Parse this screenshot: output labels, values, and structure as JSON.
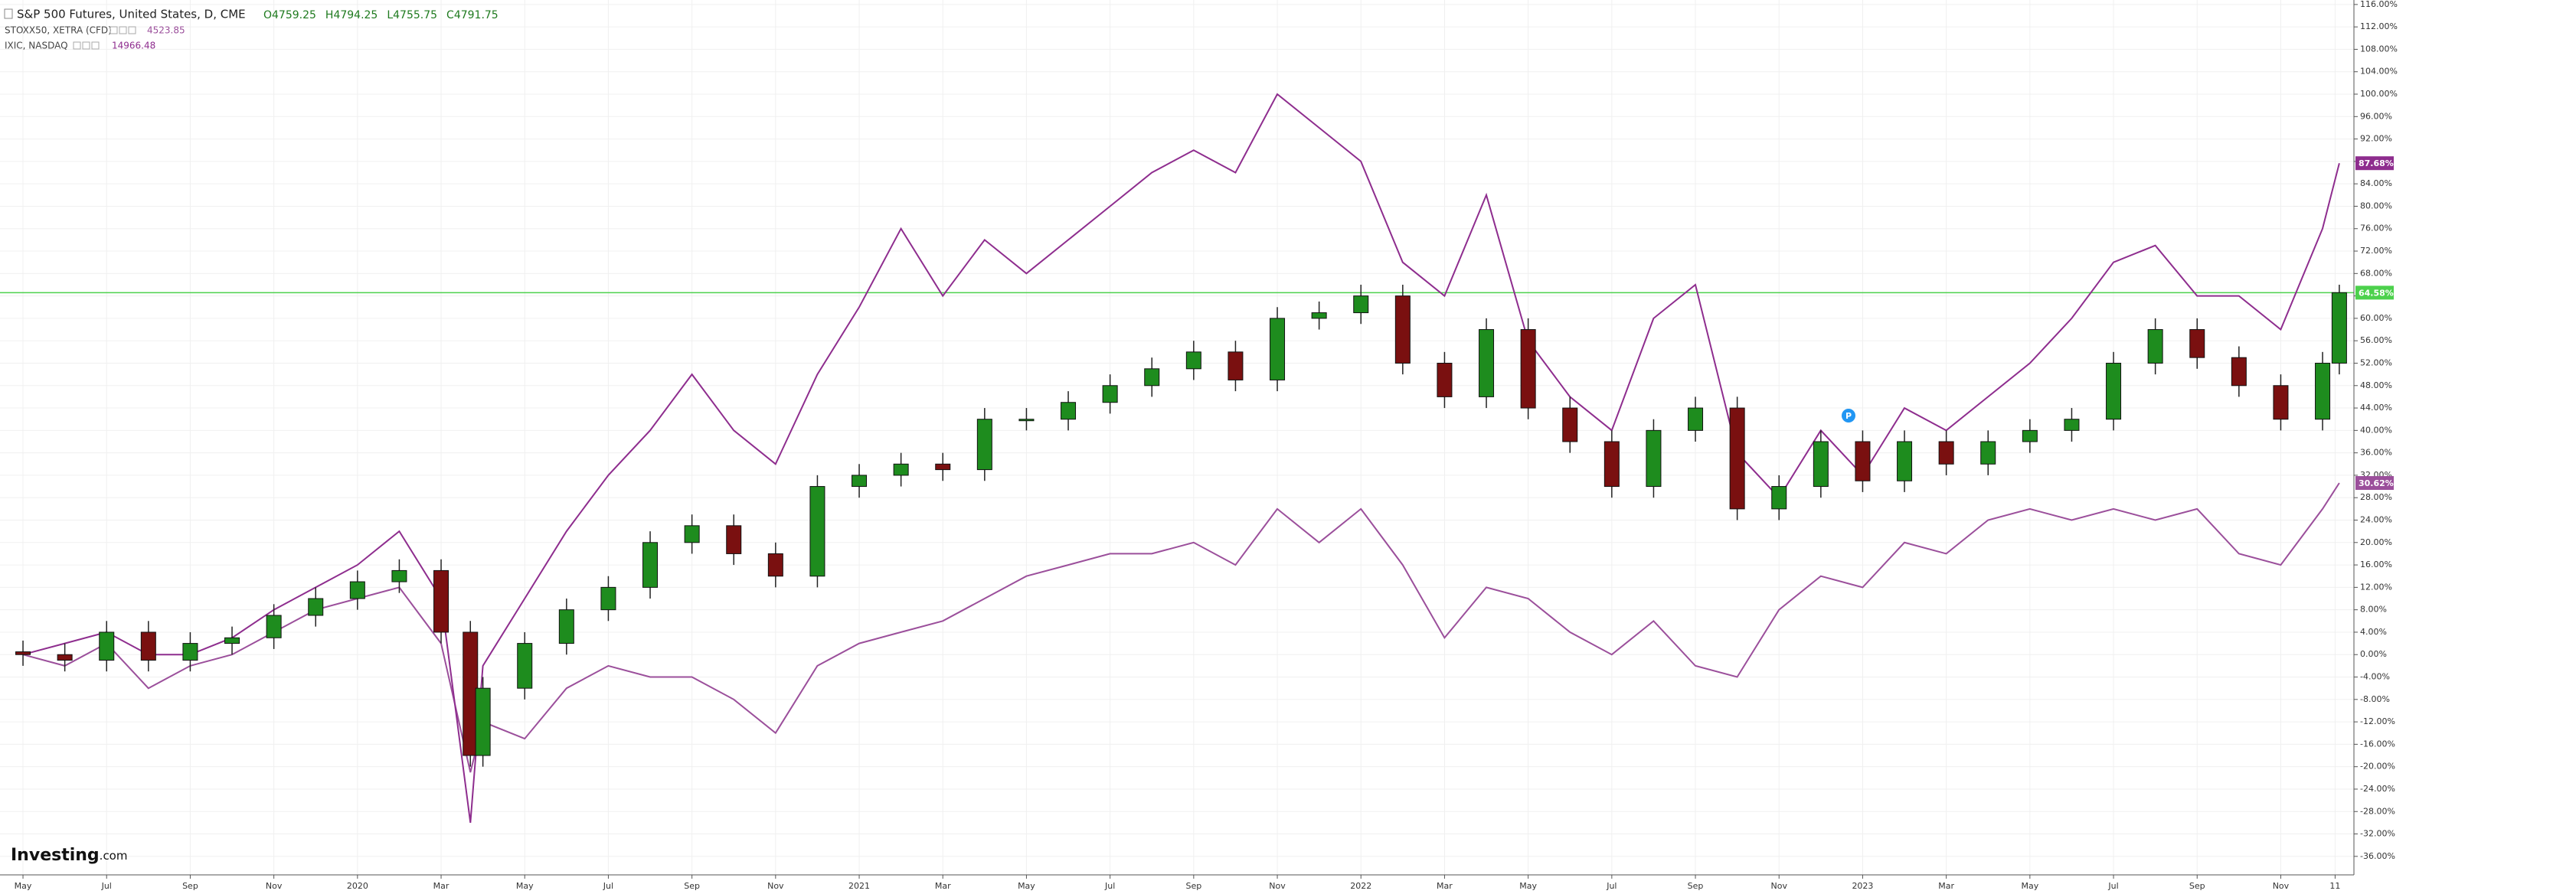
{
  "chart_data": {
    "type": "candlestick",
    "title": "S&P 500 Futures, United States, D, CME",
    "ohlc": [
      "O4759.25",
      "H4794.25",
      "L4755.75",
      "C4791.75"
    ],
    "logo": "Investing",
    "logo_suffix": ".com",
    "grid": true,
    "x": [
      0,
      1,
      2,
      3,
      4,
      5,
      6,
      7,
      8,
      9,
      10,
      10.7,
      11,
      12,
      13,
      14,
      15,
      16,
      17,
      18,
      19,
      20,
      21,
      22,
      23,
      24,
      25,
      26,
      27,
      28,
      29,
      30,
      31,
      32,
      33,
      34,
      35,
      36,
      37,
      38,
      39,
      40,
      41,
      42,
      43,
      44,
      45,
      46,
      47,
      48,
      49,
      50,
      51,
      52,
      53,
      54,
      55,
      55.4
    ],
    "xlim": [
      -0.55,
      55.75
    ],
    "xticks": [
      {
        "value": 0,
        "label": "May"
      },
      {
        "value": 2,
        "label": "Jul"
      },
      {
        "value": 4,
        "label": "Sep"
      },
      {
        "value": 6,
        "label": "Nov"
      },
      {
        "value": 8,
        "label": "2020"
      },
      {
        "value": 10,
        "label": "Mar"
      },
      {
        "value": 12,
        "label": "May"
      },
      {
        "value": 14,
        "label": "Jul"
      },
      {
        "value": 16,
        "label": "Sep"
      },
      {
        "value": 18,
        "label": "Nov"
      },
      {
        "value": 20,
        "label": "2021"
      },
      {
        "value": 22,
        "label": "Mar"
      },
      {
        "value": 24,
        "label": "May"
      },
      {
        "value": 26,
        "label": "Jul"
      },
      {
        "value": 28,
        "label": "Sep"
      },
      {
        "value": 30,
        "label": "Nov"
      },
      {
        "value": 32,
        "label": "2022"
      },
      {
        "value": 34,
        "label": "Mar"
      },
      {
        "value": 36,
        "label": "May"
      },
      {
        "value": 38,
        "label": "Jul"
      },
      {
        "value": 40,
        "label": "Sep"
      },
      {
        "value": 42,
        "label": "Nov"
      },
      {
        "value": 44,
        "label": "2023"
      },
      {
        "value": 46,
        "label": "Mar"
      },
      {
        "value": 48,
        "label": "May"
      },
      {
        "value": 50,
        "label": "Jul"
      },
      {
        "value": 52,
        "label": "Sep"
      },
      {
        "value": 54,
        "label": "Nov"
      },
      {
        "value": 55.3,
        "label": "11"
      }
    ],
    "ylim": [
      -39.3,
      116.8
    ],
    "yticks": [
      {
        "value": 116,
        "label": "116.00%"
      },
      {
        "value": 112,
        "label": "112.00%"
      },
      {
        "value": 108,
        "label": "108.00%"
      },
      {
        "value": 104,
        "label": "104.00%"
      },
      {
        "value": 100,
        "label": "100.00%"
      },
      {
        "value": 96,
        "label": "96.00%"
      },
      {
        "value": 92,
        "label": "92.00%"
      },
      {
        "value": 88,
        "label": "88.00%"
      },
      {
        "value": 84,
        "label": "84.00%"
      },
      {
        "value": 80,
        "label": "80.00%"
      },
      {
        "value": 76,
        "label": "76.00%"
      },
      {
        "value": 72,
        "label": "72.00%"
      },
      {
        "value": 68,
        "label": "68.00%"
      },
      {
        "value": 64,
        "label": "64.00%"
      },
      {
        "value": 60,
        "label": "60.00%"
      },
      {
        "value": 56,
        "label": "56.00%"
      },
      {
        "value": 52,
        "label": "52.00%"
      },
      {
        "value": 48,
        "label": "48.00%"
      },
      {
        "value": 44,
        "label": "44.00%"
      },
      {
        "value": 40,
        "label": "40.00%"
      },
      {
        "value": 36,
        "label": "36.00%"
      },
      {
        "value": 32,
        "label": "32.00%"
      },
      {
        "value": 28,
        "label": "28.00%"
      },
      {
        "value": 24,
        "label": "24.00%"
      },
      {
        "value": 20,
        "label": "20.00%"
      },
      {
        "value": 16,
        "label": "16.00%"
      },
      {
        "value": 12,
        "label": "12.00%"
      },
      {
        "value": 8,
        "label": "8.00%"
      },
      {
        "value": 4,
        "label": "4.00%"
      },
      {
        "value": 0,
        "label": "0.00%"
      },
      {
        "value": -4,
        "label": "-4.00%"
      },
      {
        "value": -8,
        "label": "-8.00%"
      },
      {
        "value": -12,
        "label": "-12.00%"
      },
      {
        "value": -16,
        "label": "-16.00%"
      },
      {
        "value": -20,
        "label": "-20.00%"
      },
      {
        "value": -24,
        "label": "-24.00%"
      },
      {
        "value": -28,
        "label": "-28.00%"
      },
      {
        "value": -32,
        "label": "-32.00%"
      },
      {
        "value": -36,
        "label": "-36.00%"
      }
    ],
    "candles": {
      "up_color": "#1e8c1e",
      "down_color": "#7a1010",
      "open": [
        0.5,
        0,
        -1,
        4,
        -1,
        2,
        3,
        7,
        10,
        13,
        15,
        4,
        -18,
        -6,
        2,
        8,
        12,
        20,
        23,
        18,
        14,
        30,
        32,
        34,
        33,
        42,
        42,
        45,
        48,
        51,
        54,
        49,
        60,
        61,
        64,
        52,
        46,
        58,
        44,
        38,
        30,
        40,
        44,
        26,
        30,
        38,
        31,
        38,
        34,
        38,
        40,
        42,
        52,
        58,
        53,
        48,
        42,
        52
      ],
      "high": [
        2.5,
        2,
        6,
        6,
        4,
        5,
        9,
        12,
        15,
        17,
        17,
        6,
        -4,
        4,
        10,
        14,
        22,
        25,
        25,
        20,
        32,
        34,
        36,
        36,
        44,
        44,
        47,
        50,
        53,
        56,
        56,
        62,
        63,
        66,
        66,
        54,
        60,
        60,
        46,
        40,
        42,
        46,
        46,
        32,
        40,
        40,
        40,
        40,
        40,
        42,
        44,
        54,
        60,
        60,
        55,
        50,
        54,
        66
      ],
      "low": [
        -2,
        -3,
        -3,
        -3,
        -3,
        0,
        1,
        5,
        8,
        11,
        2,
        -20,
        -20,
        -8,
        0,
        6,
        10,
        18,
        16,
        12,
        12,
        28,
        30,
        31,
        31,
        40,
        40,
        43,
        46,
        49,
        47,
        47,
        58,
        59,
        50,
        44,
        44,
        42,
        36,
        28,
        28,
        38,
        24,
        24,
        28,
        29,
        29,
        32,
        32,
        36,
        38,
        40,
        50,
        51,
        46,
        40,
        40,
        50
      ],
      "close": [
        0,
        -1,
        4,
        -1,
        2,
        3,
        7,
        10,
        13,
        15,
        4,
        -18,
        -6,
        2,
        8,
        12,
        20,
        23,
        18,
        14,
        30,
        32,
        34,
        33,
        42,
        42,
        45,
        48,
        51,
        54,
        49,
        60,
        61,
        64,
        52,
        46,
        58,
        44,
        38,
        30,
        40,
        44,
        26,
        30,
        38,
        31,
        38,
        34,
        38,
        40,
        42,
        52,
        58,
        53,
        48,
        42,
        52,
        64.58
      ],
      "price_line": {
        "value": 64.58,
        "label": "64.58%",
        "color": "#4cd14c"
      }
    },
    "series": [
      {
        "name": "STOXX50, XETRA (CFD)",
        "quote": "4523.85",
        "color": "#9b4f9b",
        "last_label": "30.62%",
        "values": [
          0,
          -2,
          2,
          -6,
          -2,
          0,
          4,
          8,
          10,
          12,
          2,
          -21,
          -12,
          -15,
          -6,
          -2,
          -4,
          -4,
          -8,
          -14,
          -2,
          2,
          4,
          6,
          10,
          14,
          16,
          18,
          18,
          20,
          16,
          26,
          20,
          26,
          16,
          3,
          12,
          10,
          4,
          0,
          6,
          -2,
          -4,
          8,
          14,
          12,
          20,
          18,
          24,
          26,
          24,
          26,
          24,
          26,
          18,
          16,
          26,
          30.62
        ]
      },
      {
        "name": "IXIC, NASDAQ",
        "quote": "14966.48",
        "color": "#8e2d8e",
        "last_label": "87.68%",
        "values": [
          0,
          2,
          4,
          0,
          0,
          3,
          8,
          12,
          16,
          22,
          10,
          -30,
          -2,
          10,
          22,
          32,
          40,
          50,
          40,
          34,
          50,
          62,
          76,
          64,
          74,
          68,
          74,
          80,
          86,
          90,
          86,
          100,
          94,
          88,
          70,
          64,
          82,
          56,
          46,
          40,
          60,
          66,
          36,
          28,
          40,
          32,
          44,
          40,
          46,
          52,
          60,
          70,
          73,
          64,
          64,
          58,
          76,
          87.68
        ]
      }
    ]
  }
}
